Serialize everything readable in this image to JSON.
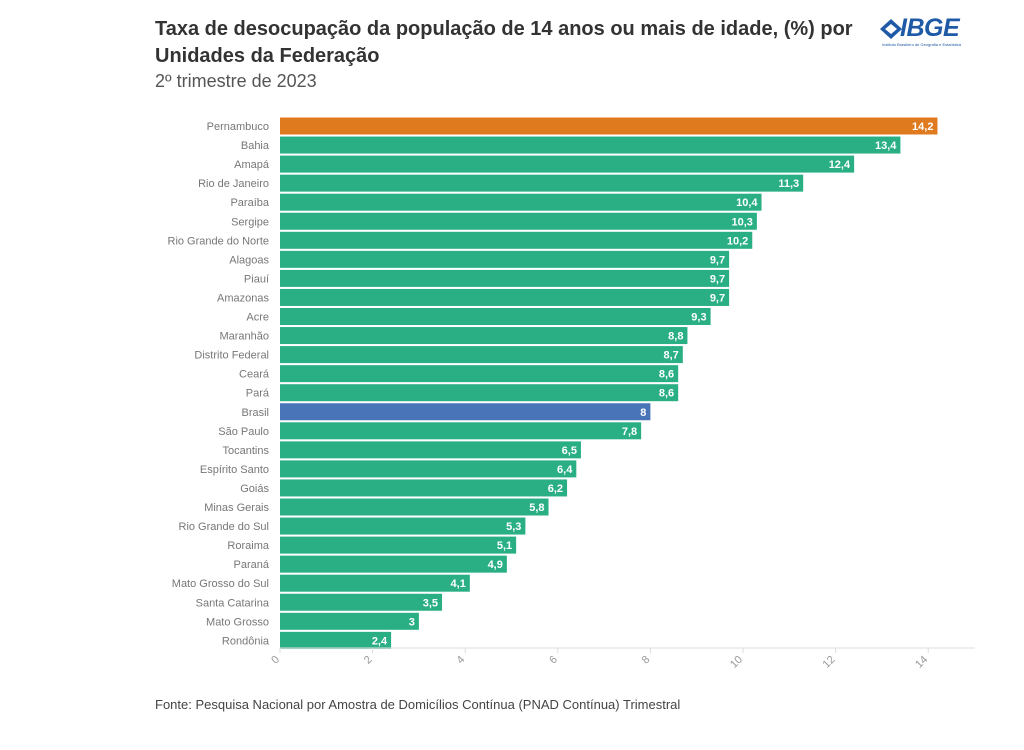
{
  "header": {
    "title": "Taxa de desocupação da população de 14 anos ou mais de idade, (%) por Unidades da Federação",
    "subtitle": "2º trimestre de 2023",
    "logo_text": "IBGE",
    "logo_subtext": "Instituto Brasileiro de Geografia e Estatística"
  },
  "footer": {
    "source": "Fonte: Pesquisa Nacional por Amostra de Domicílios Contínua (PNAD Contínua) Trimestral"
  },
  "colors": {
    "default": "#2aaf84",
    "highlight_top": "#e07a1f",
    "highlight_national": "#4a74b8"
  },
  "chart_data": {
    "type": "bar",
    "orientation": "horizontal",
    "title": "Taxa de desocupação da população de 14 anos ou mais de idade, (%) por Unidades da Federação",
    "subtitle": "2º trimestre de 2023",
    "xlabel": "",
    "ylabel": "",
    "xlim": [
      0,
      15
    ],
    "x_ticks": [
      0,
      2,
      4,
      6,
      8,
      10,
      12,
      14
    ],
    "grid": false,
    "data_labels": true,
    "categories": [
      "Pernambuco",
      "Bahia",
      "Amapá",
      "Rio de Janeiro",
      "Paraíba",
      "Sergipe",
      "Rio Grande do Norte",
      "Alagoas",
      "Piauí",
      "Amazonas",
      "Acre",
      "Maranhão",
      "Distrito Federal",
      "Ceará",
      "Pará",
      "Brasil",
      "São Paulo",
      "Tocantins",
      "Espírito Santo",
      "Goiás",
      "Minas Gerais",
      "Rio Grande do Sul",
      "Roraima",
      "Paraná",
      "Mato Grosso do Sul",
      "Santa Catarina",
      "Mato Grosso",
      "Rondônia"
    ],
    "values": [
      14.2,
      13.4,
      12.4,
      11.3,
      10.4,
      10.3,
      10.2,
      9.7,
      9.7,
      9.7,
      9.3,
      8.8,
      8.7,
      8.6,
      8.6,
      8,
      7.8,
      6.5,
      6.4,
      6.2,
      5.8,
      5.3,
      5.1,
      4.9,
      4.1,
      3.5,
      3,
      2.4
    ],
    "value_labels": [
      "14,2",
      "13,4",
      "12,4",
      "11,3",
      "10,4",
      "10,3",
      "10,2",
      "9,7",
      "9,7",
      "9,7",
      "9,3",
      "8,8",
      "8,7",
      "8,6",
      "8,6",
      "8",
      "7,8",
      "6,5",
      "6,4",
      "6,2",
      "5,8",
      "5,3",
      "5,1",
      "4,9",
      "4,1",
      "3,5",
      "3",
      "2,4"
    ],
    "highlight": {
      "Pernambuco": "highlight_top",
      "Brasil": "highlight_national"
    }
  }
}
